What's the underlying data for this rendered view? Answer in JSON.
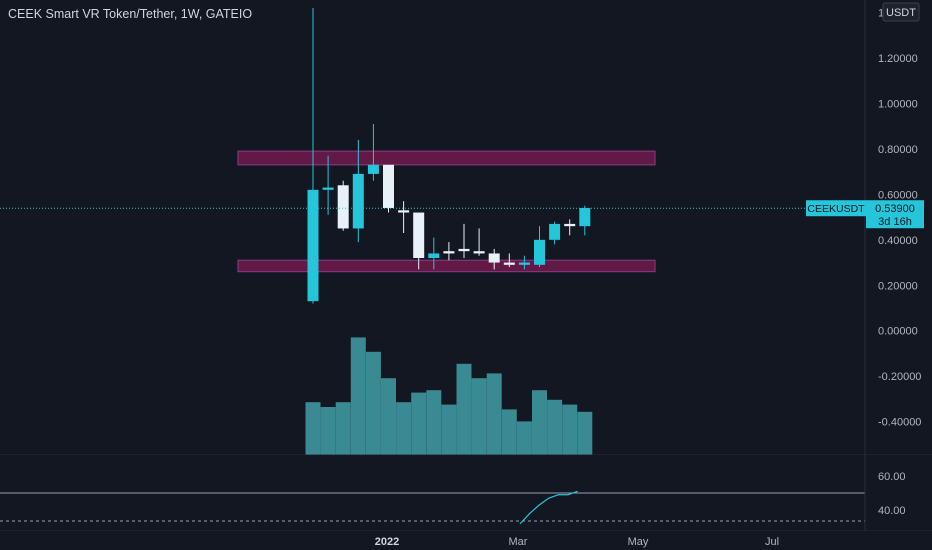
{
  "header": {
    "title": "CEEK Smart VR Token/Tether, 1W, GATEIO",
    "currency_label": "USDT"
  },
  "colors": {
    "background": "#131722",
    "up": "#26c6da",
    "down": "#e8f0f8",
    "volume": "#3a8a93",
    "zone": "#6b1a4a",
    "zone_border": "#8e3a86",
    "axis_text": "#b2b5be",
    "indicator_line": "#26c6da"
  },
  "price_axis": {
    "ticks": [
      "1.40000",
      "1.20000",
      "1.00000",
      "0.80000",
      "0.60000",
      "0.40000",
      "0.20000",
      "0.00000",
      "-0.20000",
      "-0.40000"
    ]
  },
  "price_label": {
    "symbol": "CEEKUSDT",
    "price": "0.53900",
    "countdown": "3d 16h"
  },
  "time_axis": {
    "labels": [
      "2022",
      "Mar",
      "May",
      "Jul"
    ]
  },
  "indicator_axis": {
    "ticks": [
      "60.00",
      "40.00"
    ]
  },
  "chart_data": {
    "type": "candlestick",
    "title": "CEEK Smart VR Token/Tether, 1W, GATEIO",
    "ylim": [
      -0.56,
      1.42
    ],
    "candles": [
      {
        "open": 0.13,
        "close": 0.62,
        "high": 1.42,
        "low": 0.12
      },
      {
        "open": 0.62,
        "close": 0.63,
        "high": 0.77,
        "low": 0.51
      },
      {
        "open": 0.64,
        "close": 0.45,
        "high": 0.66,
        "low": 0.44
      },
      {
        "open": 0.45,
        "close": 0.69,
        "high": 0.84,
        "low": 0.39
      },
      {
        "open": 0.69,
        "close": 0.73,
        "high": 0.91,
        "low": 0.66
      },
      {
        "open": 0.73,
        "close": 0.54,
        "high": 0.73,
        "low": 0.52
      },
      {
        "open": 0.53,
        "close": 0.52,
        "high": 0.57,
        "low": 0.43
      },
      {
        "open": 0.52,
        "close": 0.32,
        "high": 0.52,
        "low": 0.27
      },
      {
        "open": 0.32,
        "close": 0.34,
        "high": 0.41,
        "low": 0.27
      },
      {
        "open": 0.35,
        "close": 0.34,
        "high": 0.39,
        "low": 0.31
      },
      {
        "open": 0.36,
        "close": 0.35,
        "high": 0.47,
        "low": 0.32
      },
      {
        "open": 0.35,
        "close": 0.34,
        "high": 0.45,
        "low": 0.33
      },
      {
        "open": 0.34,
        "close": 0.3,
        "high": 0.36,
        "low": 0.27
      },
      {
        "open": 0.3,
        "close": 0.29,
        "high": 0.34,
        "low": 0.28
      },
      {
        "open": 0.29,
        "close": 0.3,
        "high": 0.33,
        "low": 0.27
      },
      {
        "open": 0.29,
        "close": 0.4,
        "high": 0.46,
        "low": 0.28
      },
      {
        "open": 0.4,
        "close": 0.47,
        "high": 0.48,
        "low": 0.38
      },
      {
        "open": 0.47,
        "close": 0.46,
        "high": 0.49,
        "low": 0.42
      },
      {
        "open": 0.46,
        "close": 0.54,
        "high": 0.55,
        "low": 0.42
      }
    ],
    "volume": [
      0.22,
      0.2,
      0.22,
      0.49,
      0.43,
      0.32,
      0.22,
      0.26,
      0.27,
      0.21,
      0.38,
      0.32,
      0.34,
      0.19,
      0.14,
      0.27,
      0.23,
      0.21,
      0.18
    ],
    "zones": [
      {
        "from": 0.73,
        "to": 0.79
      },
      {
        "from": 0.26,
        "to": 0.31
      }
    ],
    "current_price": 0.539,
    "indicator": {
      "ylim": [
        29,
        71
      ],
      "reference_level": 50,
      "values": [
        32,
        38,
        43,
        47,
        49,
        49,
        51
      ]
    }
  }
}
